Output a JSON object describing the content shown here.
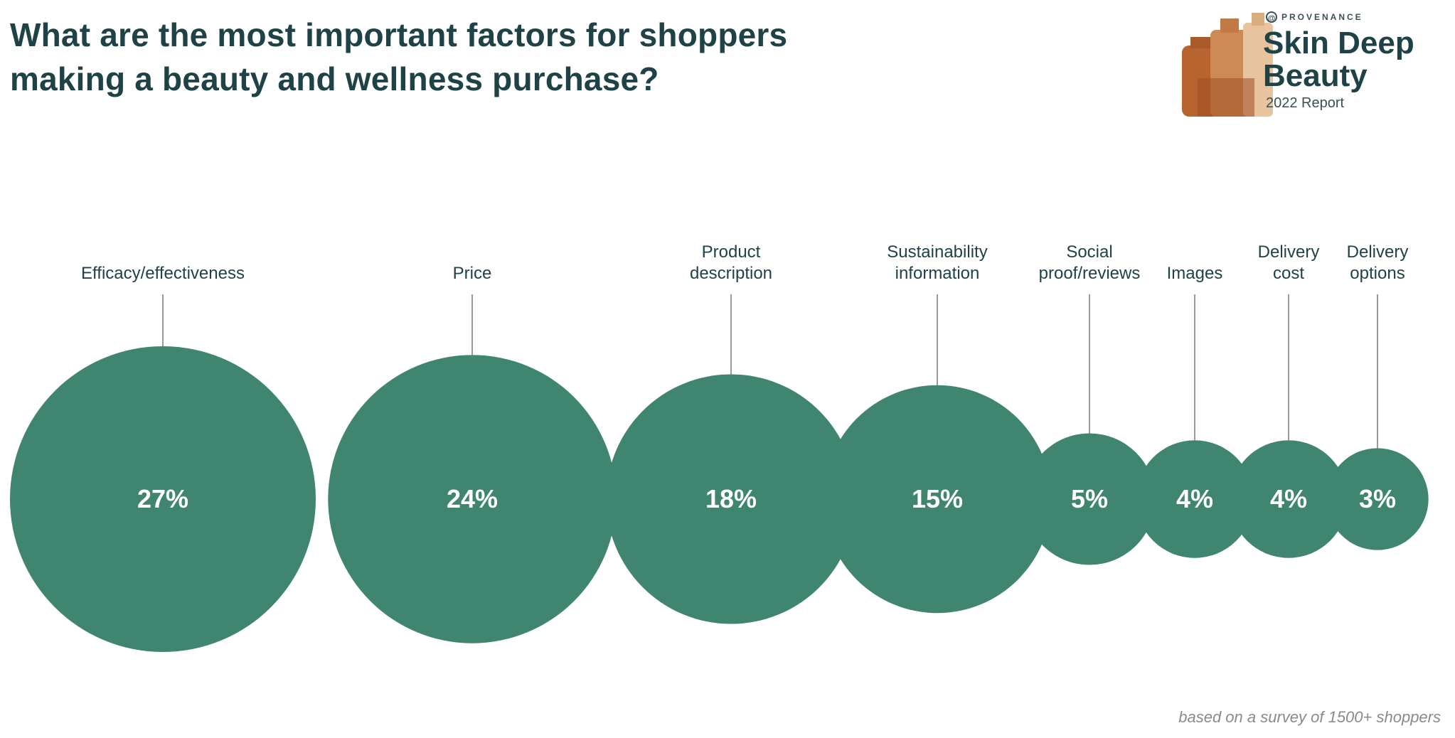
{
  "title_lines": [
    "What are the most important factors for shoppers",
    "making a beauty and wellness purchase?"
  ],
  "brand": {
    "small_label": "PROVENANCE",
    "at_symbol": "@",
    "name_lines": [
      "Skin Deep",
      "Beauty"
    ],
    "year_label": "2022 Report"
  },
  "footnote": "based on a survey of 1500+ shoppers",
  "colors": {
    "bubble": "#3f8570",
    "title": "#1f4247",
    "leader": "#9a9a9a"
  },
  "chart_data": {
    "type": "bubble",
    "title": "What are the most important factors for shoppers making a beauty and wellness purchase?",
    "unit": "%",
    "categories": [
      [
        "Efficacy/effectiveness"
      ],
      [
        "Price"
      ],
      [
        "Product",
        "description"
      ],
      [
        "Sustainability",
        "information"
      ],
      [
        "Social",
        "proof/reviews"
      ],
      [
        "Images"
      ],
      [
        "Delivery",
        "cost"
      ],
      [
        "Delivery",
        "options"
      ]
    ],
    "values": [
      27,
      24,
      18,
      15,
      5,
      4,
      4,
      3
    ],
    "value_labels": [
      "27%",
      "24%",
      "18%",
      "15%",
      "5%",
      "4%",
      "4%",
      "3%"
    ]
  }
}
